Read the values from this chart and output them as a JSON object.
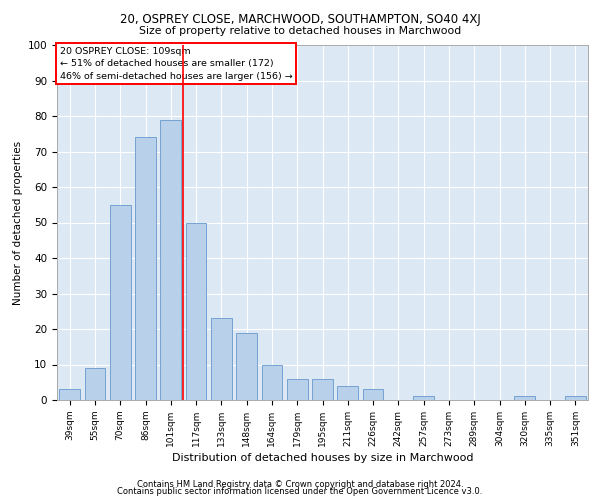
{
  "title1": "20, OSPREY CLOSE, MARCHWOOD, SOUTHAMPTON, SO40 4XJ",
  "title2": "Size of property relative to detached houses in Marchwood",
  "xlabel": "Distribution of detached houses by size in Marchwood",
  "ylabel": "Number of detached properties",
  "categories": [
    "39sqm",
    "55sqm",
    "70sqm",
    "86sqm",
    "101sqm",
    "117sqm",
    "133sqm",
    "148sqm",
    "164sqm",
    "179sqm",
    "195sqm",
    "211sqm",
    "226sqm",
    "242sqm",
    "257sqm",
    "273sqm",
    "289sqm",
    "304sqm",
    "320sqm",
    "335sqm",
    "351sqm"
  ],
  "values": [
    3,
    9,
    55,
    74,
    79,
    50,
    23,
    19,
    10,
    6,
    6,
    4,
    3,
    0,
    1,
    0,
    0,
    0,
    1,
    0,
    1
  ],
  "bar_color": "#b8d0ea",
  "bar_edge_color": "#6699cc",
  "vline_x_index": 4.5,
  "vline_color": "red",
  "annotation_title": "20 OSPREY CLOSE: 109sqm",
  "annotation_line1": "← 51% of detached houses are smaller (172)",
  "annotation_line2": "46% of semi-detached houses are larger (156) →",
  "annotation_box_color": "white",
  "annotation_box_edge": "red",
  "ylim": [
    0,
    100
  ],
  "yticks": [
    0,
    10,
    20,
    30,
    40,
    50,
    60,
    70,
    80,
    90,
    100
  ],
  "background_color": "#dde8f5",
  "grid_color": "white",
  "footer1": "Contains HM Land Registry data © Crown copyright and database right 2024.",
  "footer2": "Contains public sector information licensed under the Open Government Licence v3.0."
}
